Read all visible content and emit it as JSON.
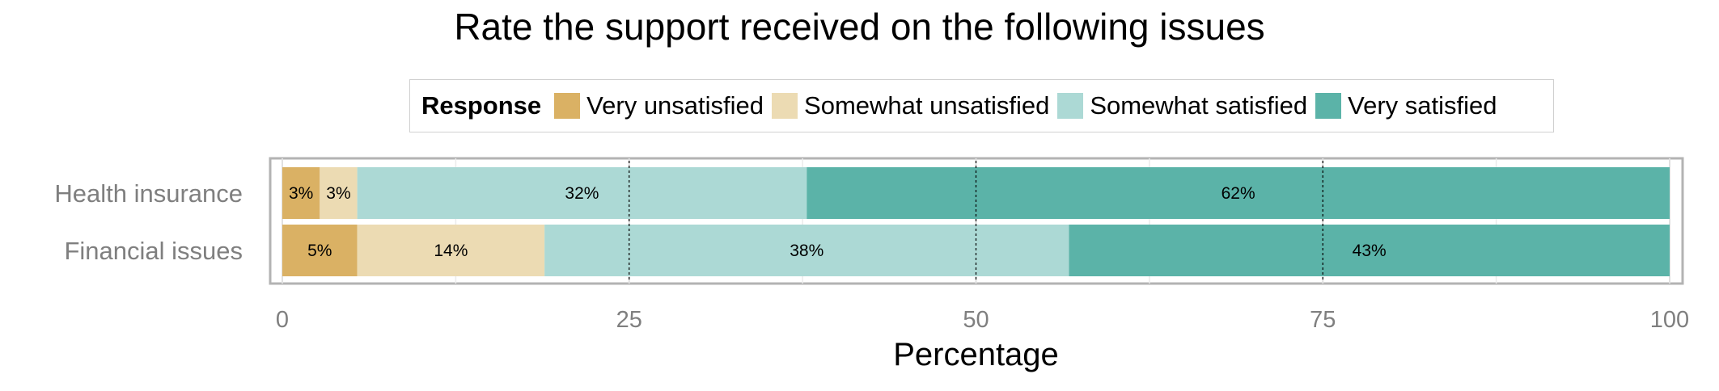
{
  "chart_data": {
    "type": "bar",
    "orientation": "horizontal",
    "stacked": true,
    "title": "Rate the support received on the following issues",
    "xlabel": "Percentage",
    "ylabel": "",
    "xlim": [
      0,
      100
    ],
    "xticks": [
      0,
      25,
      50,
      75,
      100
    ],
    "categories": [
      "Health insurance",
      "Financial issues"
    ],
    "legend_title": "Response",
    "legend_position": "top",
    "series": [
      {
        "name": "Very unsatisfied",
        "color": "#dab164",
        "values": [
          2.7,
          5.4
        ],
        "labels": [
          "3%",
          "5%"
        ]
      },
      {
        "name": "Somewhat unsatisfied",
        "color": "#ecdbb3",
        "values": [
          2.7,
          13.5
        ],
        "labels": [
          "3%",
          "14%"
        ]
      },
      {
        "name": "Somewhat satisfied",
        "color": "#acd9d5",
        "values": [
          32.4,
          37.8
        ],
        "labels": [
          "32%",
          "38%"
        ]
      },
      {
        "name": "Very satisfied",
        "color": "#5bb3a8",
        "values": [
          62.2,
          43.3
        ],
        "labels": [
          "62%",
          "43%"
        ]
      }
    ],
    "grid": true
  }
}
